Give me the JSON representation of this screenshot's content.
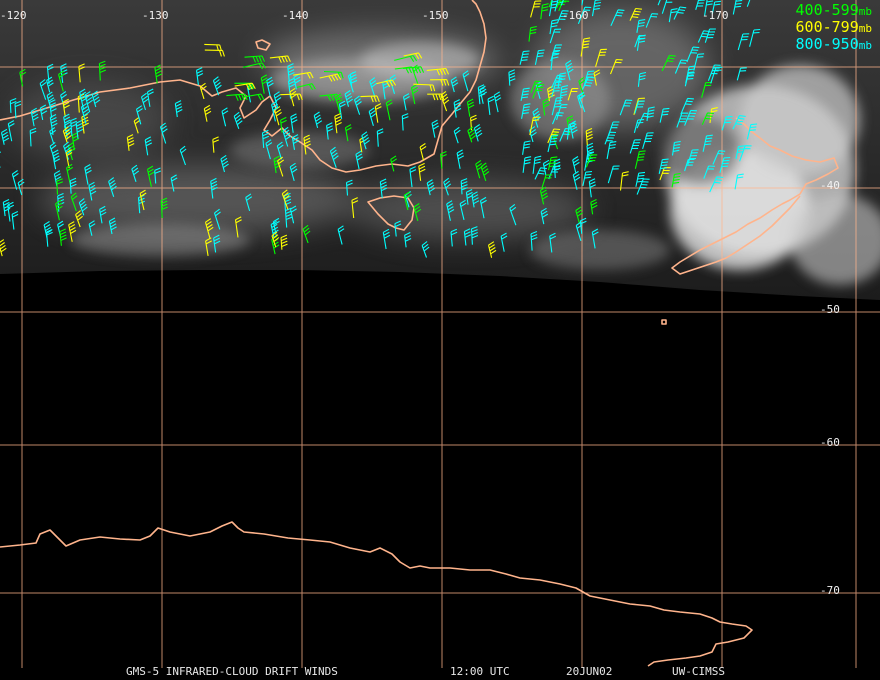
{
  "map": {
    "longitude_labels": [
      "-120",
      "-130",
      "-140",
      "-150",
      "-160",
      "-170"
    ],
    "latitude_labels": [
      "-40",
      "-50",
      "-60",
      "-70"
    ],
    "coastline_color": "#ffb48c",
    "grid_color": "#ffb48c",
    "background_color": "#000000"
  },
  "legend": [
    {
      "range": "400-599",
      "unit": "mb",
      "color": "#00ff00"
    },
    {
      "range": "600-799",
      "unit": "mb",
      "color": "#ffff00"
    },
    {
      "range": "800-950",
      "unit": "mb",
      "color": "#00ffff"
    }
  ],
  "footer": {
    "product": "GMS-5 INFRARED-CLOUD DRIFT WINDS",
    "time": "12:00 UTC",
    "date": "20JUN02",
    "source": "UW-CIMSS"
  }
}
